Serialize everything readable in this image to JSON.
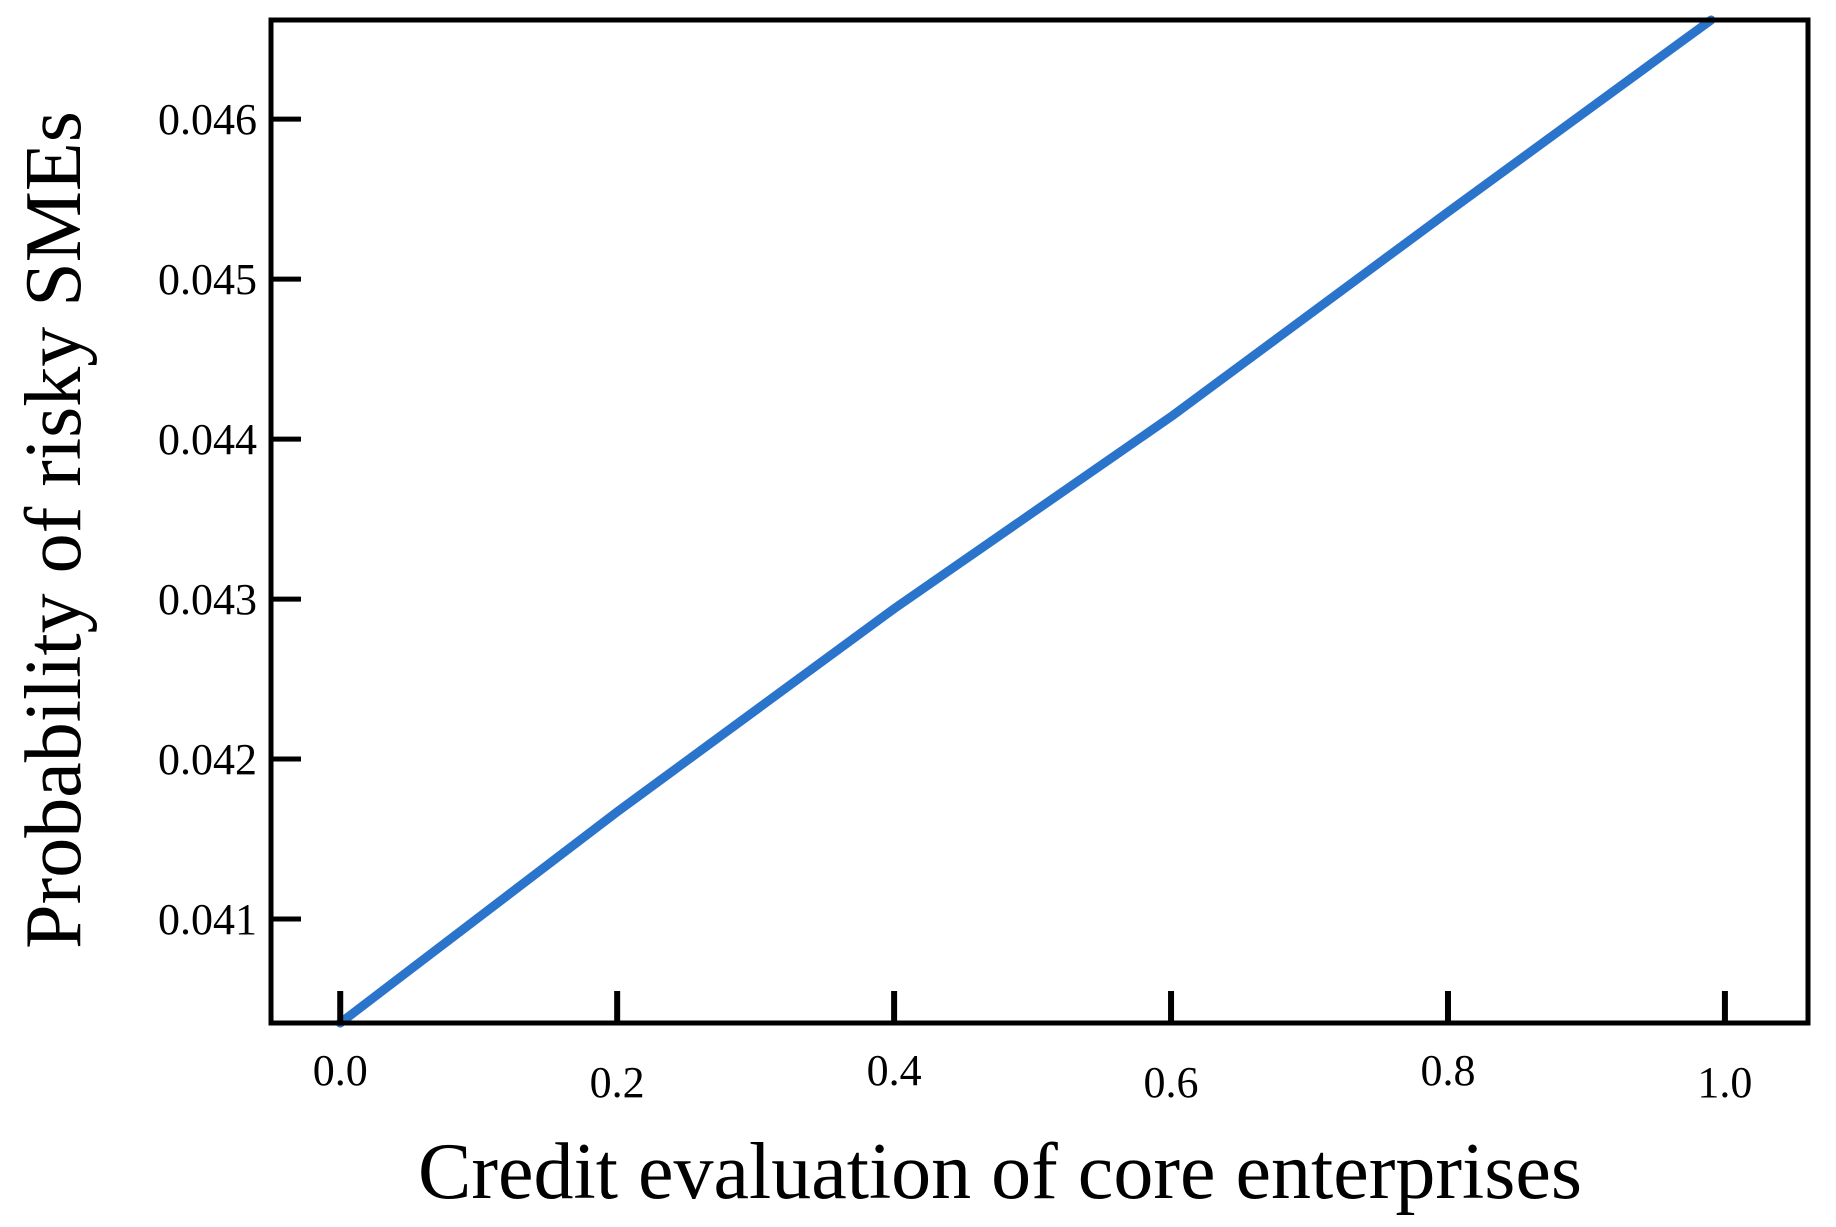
{
  "chart_data": {
    "type": "line",
    "title": "",
    "xlabel": "Credit evaluation of core enterprises",
    "ylabel": "Probability of risky SMEs",
    "xlim": [
      -0.05,
      1.06
    ],
    "ylim": [
      0.04035,
      0.04662
    ],
    "x_ticks": [
      0.0,
      0.2,
      0.4,
      0.6,
      0.8,
      1.0
    ],
    "x_tick_labels": [
      "0.0",
      "0.2",
      "0.4",
      "0.6",
      "0.8",
      "1.0"
    ],
    "y_ticks": [
      0.041,
      0.042,
      0.043,
      0.044,
      0.045,
      0.046
    ],
    "y_tick_labels": [
      "0.041",
      "0.042",
      "0.043",
      "0.044",
      "0.045",
      "0.046"
    ],
    "grid": false,
    "legend": "none",
    "series": [
      {
        "color": "#2a74cc",
        "x": [
          0.0,
          0.2,
          0.4,
          0.6,
          0.8,
          0.99
        ],
        "y": [
          0.04035,
          0.04167,
          0.04294,
          0.04414,
          0.04542,
          0.04662
        ]
      }
    ]
  }
}
